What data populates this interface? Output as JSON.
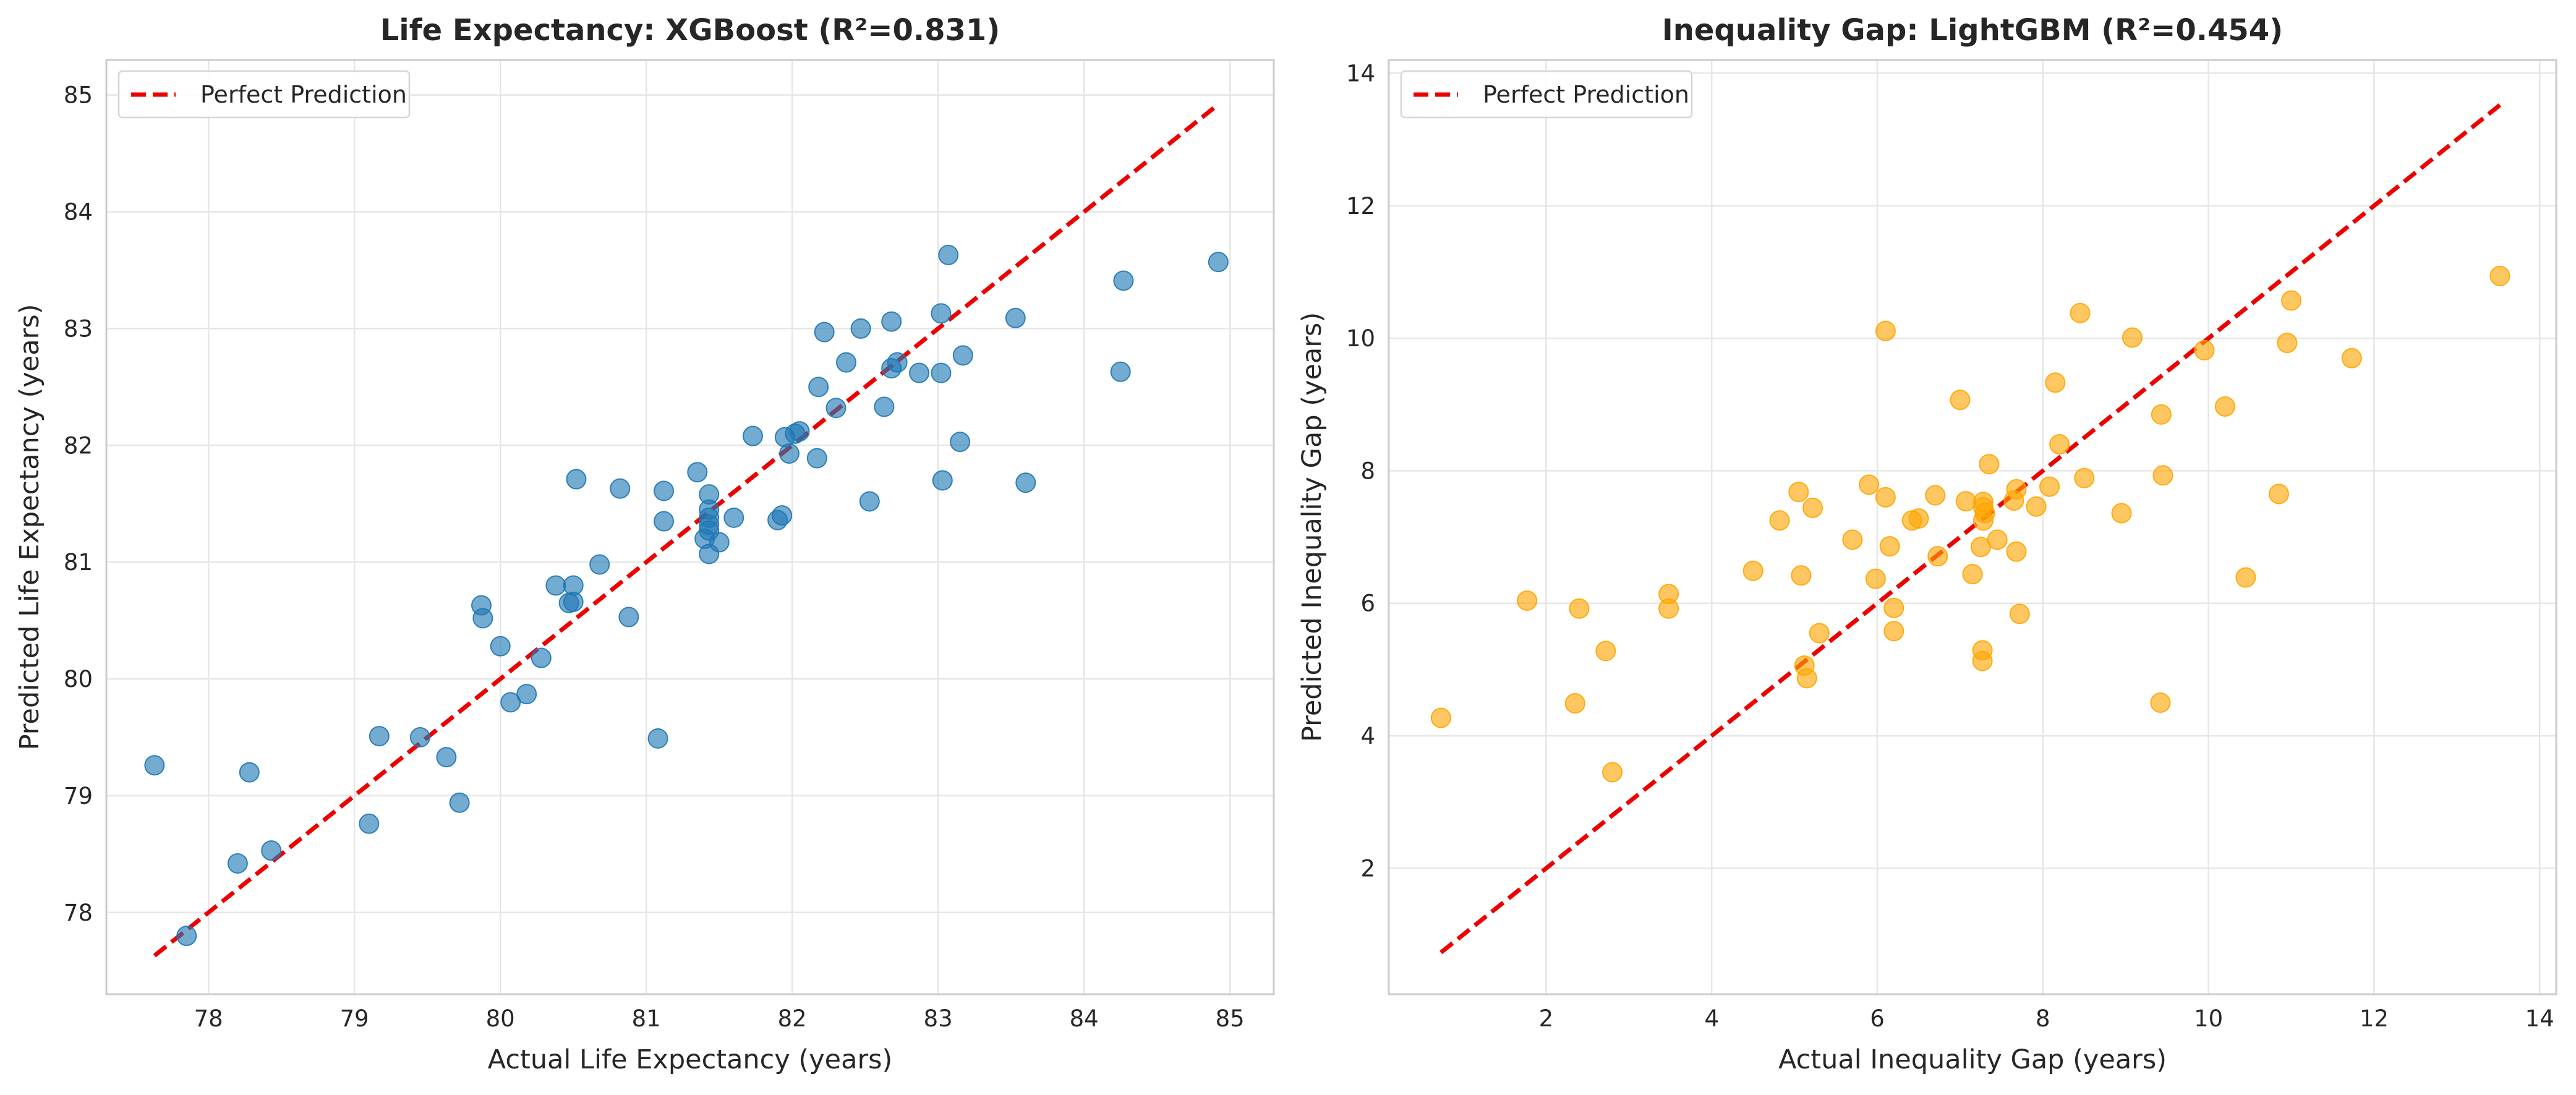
{
  "chart_data": [
    {
      "type": "scatter",
      "title": "Life Expectancy: XGBoost (R²=0.831)",
      "xlabel": "Actual Life Expectancy (years)",
      "ylabel": "Predicted Life Expectancy (years)",
      "xlim": [
        77.3,
        85.3
      ],
      "ylim": [
        77.3,
        85.3
      ],
      "xticks": [
        78,
        79,
        80,
        81,
        82,
        83,
        84,
        85
      ],
      "yticks": [
        78,
        79,
        80,
        81,
        82,
        83,
        84,
        85
      ],
      "grid": true,
      "legend": {
        "position": "top-left",
        "entries": [
          "Perfect Prediction"
        ]
      },
      "reference_line": {
        "name": "Perfect Prediction",
        "color": "#ee0000",
        "style": "dashed",
        "x": [
          77.63,
          84.92
        ],
        "y": [
          77.63,
          84.92
        ]
      },
      "series": [
        {
          "color": "#1f77b4",
          "points": [
            [
              77.63,
              79.26
            ],
            [
              77.85,
              77.8
            ],
            [
              78.2,
              78.42
            ],
            [
              78.28,
              79.2
            ],
            [
              78.43,
              78.53
            ],
            [
              79.1,
              78.76
            ],
            [
              79.17,
              79.51
            ],
            [
              79.45,
              79.5
            ],
            [
              79.63,
              79.33
            ],
            [
              79.72,
              78.94
            ],
            [
              79.87,
              80.63
            ],
            [
              79.88,
              80.52
            ],
            [
              80.0,
              80.28
            ],
            [
              80.07,
              79.8
            ],
            [
              80.18,
              79.87
            ],
            [
              80.28,
              80.18
            ],
            [
              80.38,
              80.8
            ],
            [
              80.47,
              80.65
            ],
            [
              80.5,
              80.66
            ],
            [
              80.5,
              80.8
            ],
            [
              80.52,
              81.71
            ],
            [
              80.68,
              80.98
            ],
            [
              80.82,
              81.63
            ],
            [
              80.88,
              80.53
            ],
            [
              81.08,
              79.49
            ],
            [
              81.12,
              81.35
            ],
            [
              81.12,
              81.61
            ],
            [
              81.35,
              81.77
            ],
            [
              81.4,
              81.2
            ],
            [
              81.43,
              81.58
            ],
            [
              81.43,
              81.45
            ],
            [
              81.43,
              81.38
            ],
            [
              81.43,
              81.32
            ],
            [
              81.43,
              81.27
            ],
            [
              81.43,
              81.07
            ],
            [
              81.5,
              81.17
            ],
            [
              81.6,
              81.38
            ],
            [
              81.73,
              82.08
            ],
            [
              81.9,
              81.36
            ],
            [
              81.93,
              81.4
            ],
            [
              81.95,
              82.07
            ],
            [
              81.98,
              81.93
            ],
            [
              82.02,
              82.1
            ],
            [
              82.05,
              82.12
            ],
            [
              82.17,
              81.89
            ],
            [
              82.18,
              82.5
            ],
            [
              82.22,
              82.97
            ],
            [
              82.3,
              82.32
            ],
            [
              82.37,
              82.71
            ],
            [
              82.47,
              83.0
            ],
            [
              82.53,
              81.52
            ],
            [
              82.63,
              82.33
            ],
            [
              82.68,
              83.06
            ],
            [
              82.68,
              82.66
            ],
            [
              82.72,
              82.71
            ],
            [
              82.87,
              82.62
            ],
            [
              83.02,
              82.62
            ],
            [
              83.02,
              83.13
            ],
            [
              83.03,
              81.7
            ],
            [
              83.07,
              83.63
            ],
            [
              83.15,
              82.03
            ],
            [
              83.17,
              82.77
            ],
            [
              83.53,
              83.09
            ],
            [
              83.6,
              81.68
            ],
            [
              84.25,
              82.63
            ],
            [
              84.27,
              83.41
            ],
            [
              84.92,
              83.57
            ]
          ]
        }
      ]
    },
    {
      "type": "scatter",
      "title": "Inequality Gap: LightGBM (R²=0.454)",
      "xlabel": "Actual Inequality Gap (years)",
      "ylabel": "Predicted Inequality Gap (years)",
      "xlim": [
        0.1,
        14.2
      ],
      "ylim": [
        0.1,
        14.2
      ],
      "xticks": [
        2,
        4,
        6,
        8,
        10,
        12,
        14
      ],
      "yticks": [
        2,
        4,
        6,
        8,
        10,
        12,
        14
      ],
      "grid": true,
      "legend": {
        "position": "top-left",
        "entries": [
          "Perfect Prediction"
        ]
      },
      "reference_line": {
        "name": "Perfect Prediction",
        "color": "#ee0000",
        "style": "dashed",
        "x": [
          0.73,
          13.52
        ],
        "y": [
          0.73,
          13.52
        ]
      },
      "series": [
        {
          "color": "#ffa500",
          "points": [
            [
              0.73,
              4.27
            ],
            [
              1.77,
              6.04
            ],
            [
              2.35,
              4.49
            ],
            [
              2.4,
              5.92
            ],
            [
              2.72,
              5.28
            ],
            [
              2.8,
              3.45
            ],
            [
              3.48,
              6.14
            ],
            [
              3.48,
              5.92
            ],
            [
              4.5,
              6.49
            ],
            [
              4.82,
              7.25
            ],
            [
              5.05,
              7.68
            ],
            [
              5.08,
              6.42
            ],
            [
              5.12,
              5.06
            ],
            [
              5.15,
              4.87
            ],
            [
              5.22,
              7.44
            ],
            [
              5.3,
              5.55
            ],
            [
              5.7,
              6.96
            ],
            [
              5.9,
              7.79
            ],
            [
              5.98,
              6.37
            ],
            [
              6.1,
              7.6
            ],
            [
              6.1,
              10.11
            ],
            [
              6.15,
              6.86
            ],
            [
              6.2,
              5.58
            ],
            [
              6.2,
              5.93
            ],
            [
              6.42,
              7.25
            ],
            [
              6.5,
              7.28
            ],
            [
              6.7,
              7.63
            ],
            [
              6.73,
              6.71
            ],
            [
              7.0,
              9.07
            ],
            [
              7.07,
              7.54
            ],
            [
              7.15,
              6.44
            ],
            [
              7.28,
              7.53
            ],
            [
              7.28,
              7.45
            ],
            [
              7.3,
              7.36
            ],
            [
              7.28,
              7.25
            ],
            [
              7.25,
              6.85
            ],
            [
              7.27,
              5.29
            ],
            [
              7.27,
              5.13
            ],
            [
              7.35,
              8.1
            ],
            [
              7.45,
              6.96
            ],
            [
              7.65,
              7.55
            ],
            [
              7.68,
              7.72
            ],
            [
              7.68,
              6.78
            ],
            [
              7.72,
              5.84
            ],
            [
              7.92,
              7.46
            ],
            [
              8.08,
              7.76
            ],
            [
              8.15,
              9.33
            ],
            [
              8.2,
              8.4
            ],
            [
              8.45,
              10.38
            ],
            [
              8.5,
              7.89
            ],
            [
              8.95,
              7.36
            ],
            [
              9.08,
              10.01
            ],
            [
              9.42,
              4.5
            ],
            [
              9.43,
              8.85
            ],
            [
              9.45,
              7.93
            ],
            [
              9.95,
              9.82
            ],
            [
              10.2,
              8.97
            ],
            [
              10.45,
              6.39
            ],
            [
              10.85,
              7.65
            ],
            [
              10.95,
              9.93
            ],
            [
              11.0,
              10.57
            ],
            [
              11.73,
              9.7
            ],
            [
              13.52,
              10.94
            ]
          ]
        }
      ]
    }
  ]
}
